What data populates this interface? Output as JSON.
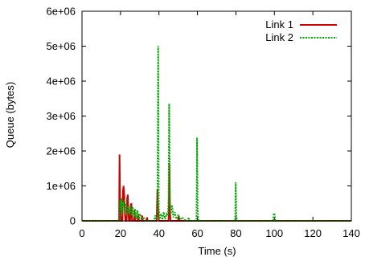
{
  "chart_data": {
    "type": "line",
    "title": "",
    "xlabel": "Time (s)",
    "ylabel": "Queue (bytes)",
    "xlim": [
      0,
      140
    ],
    "ylim": [
      0,
      6000000
    ],
    "x_ticks": [
      0,
      20,
      40,
      60,
      80,
      100,
      120,
      140
    ],
    "x_tick_labels": [
      "0",
      "20",
      "40",
      "60",
      "80",
      "100",
      "120",
      "140"
    ],
    "y_ticks": [
      0,
      1000000,
      2000000,
      3000000,
      4000000,
      5000000,
      6000000
    ],
    "y_tick_labels": [
      "0",
      "1e+06",
      "2e+06",
      "3e+06",
      "4e+06",
      "5e+06",
      "6e+06"
    ],
    "grid": false,
    "legend_position": "top-right",
    "series": [
      {
        "name": "Link 1",
        "color": "#cc0000",
        "style": "solid",
        "points": [
          [
            0,
            0
          ],
          [
            19.3,
            0
          ],
          [
            19.5,
            1900000
          ],
          [
            19.8,
            600000
          ],
          [
            20.1,
            150000
          ],
          [
            20.4,
            0
          ],
          [
            21.0,
            0
          ],
          [
            21.3,
            850000
          ],
          [
            21.6,
            1000000
          ],
          [
            22.0,
            700000
          ],
          [
            22.3,
            200000
          ],
          [
            22.6,
            0
          ],
          [
            23.2,
            0
          ],
          [
            23.5,
            650000
          ],
          [
            23.8,
            750000
          ],
          [
            24.1,
            250000
          ],
          [
            24.4,
            0
          ],
          [
            25.0,
            0
          ],
          [
            25.3,
            450000
          ],
          [
            25.7,
            500000
          ],
          [
            26.0,
            0
          ],
          [
            27.0,
            0
          ],
          [
            27.3,
            300000
          ],
          [
            27.6,
            0
          ],
          [
            29.0,
            0
          ],
          [
            29.3,
            200000
          ],
          [
            29.6,
            0
          ],
          [
            31.0,
            0
          ],
          [
            31.3,
            150000
          ],
          [
            31.6,
            0
          ],
          [
            33.5,
            0
          ],
          [
            33.8,
            100000
          ],
          [
            34.1,
            0
          ],
          [
            38.8,
            0
          ],
          [
            39.2,
            900000
          ],
          [
            39.6,
            250000
          ],
          [
            40.0,
            0
          ],
          [
            45.0,
            0
          ],
          [
            45.2,
            500000
          ],
          [
            45.4,
            1650000
          ],
          [
            45.7,
            300000
          ],
          [
            46.0,
            0
          ],
          [
            50.0,
            0
          ],
          [
            50.3,
            150000
          ],
          [
            50.6,
            0
          ],
          [
            140,
            0
          ]
        ]
      },
      {
        "name": "Link 2",
        "color": "#00aa00",
        "style": "dotted",
        "points": [
          [
            0,
            0
          ],
          [
            19.6,
            0
          ],
          [
            19.8,
            600000
          ],
          [
            20.1,
            300000
          ],
          [
            20.5,
            650000
          ],
          [
            20.8,
            200000
          ],
          [
            21.2,
            550000
          ],
          [
            21.6,
            400000
          ],
          [
            22.0,
            600000
          ],
          [
            22.5,
            250000
          ],
          [
            23.0,
            500000
          ],
          [
            23.5,
            150000
          ],
          [
            24.0,
            400000
          ],
          [
            24.6,
            200000
          ],
          [
            25.2,
            450000
          ],
          [
            25.8,
            150000
          ],
          [
            26.4,
            400000
          ],
          [
            27.0,
            100000
          ],
          [
            27.6,
            350000
          ],
          [
            28.2,
            50000
          ],
          [
            28.8,
            300000
          ],
          [
            29.5,
            50000
          ],
          [
            30.2,
            200000
          ],
          [
            31.0,
            30000
          ],
          [
            32.0,
            100000
          ],
          [
            33.0,
            0
          ],
          [
            37.5,
            0
          ],
          [
            38.0,
            150000
          ],
          [
            38.6,
            50000
          ],
          [
            39.2,
            300000
          ],
          [
            39.6,
            5000000
          ],
          [
            39.9,
            400000
          ],
          [
            40.3,
            50000
          ],
          [
            41.0,
            200000
          ],
          [
            41.8,
            30000
          ],
          [
            42.5,
            250000
          ],
          [
            43.2,
            50000
          ],
          [
            44.0,
            200000
          ],
          [
            44.7,
            150000
          ],
          [
            45.0,
            650000
          ],
          [
            45.3,
            3350000
          ],
          [
            45.7,
            600000
          ],
          [
            46.1,
            200000
          ],
          [
            46.8,
            450000
          ],
          [
            47.5,
            100000
          ],
          [
            48.2,
            250000
          ],
          [
            49.0,
            50000
          ],
          [
            50.0,
            150000
          ],
          [
            51.0,
            30000
          ],
          [
            52.0,
            100000
          ],
          [
            53.0,
            50000
          ],
          [
            54.0,
            0
          ],
          [
            55.0,
            0
          ],
          [
            55.4,
            100000
          ],
          [
            55.8,
            0
          ],
          [
            59.5,
            0
          ],
          [
            59.8,
            2380000
          ],
          [
            60.1,
            300000
          ],
          [
            60.5,
            0
          ],
          [
            79.6,
            0
          ],
          [
            79.9,
            1100000
          ],
          [
            80.2,
            150000
          ],
          [
            80.5,
            0
          ],
          [
            99.4,
            0
          ],
          [
            99.7,
            220000
          ],
          [
            100.1,
            180000
          ],
          [
            100.5,
            0
          ],
          [
            140,
            0
          ]
        ]
      }
    ]
  }
}
